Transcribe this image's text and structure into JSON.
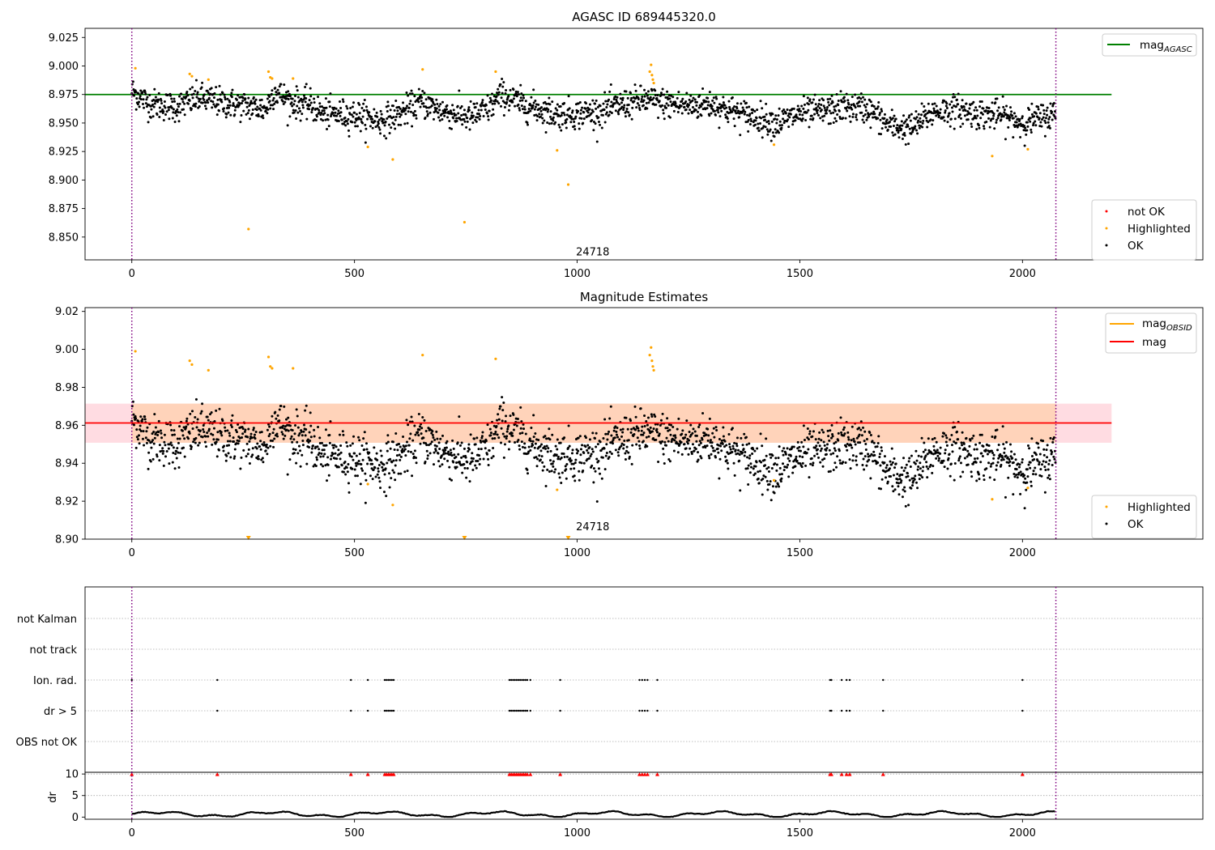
{
  "chart_data": [
    {
      "type": "scatter",
      "title": "AGASC ID 689445320.0",
      "xlim": [
        -105,
        2405
      ],
      "ylim": [
        8.83,
        9.033
      ],
      "xticks": [
        0,
        500,
        1000,
        1500,
        2000
      ],
      "yticks": [
        8.85,
        8.875,
        8.9,
        8.925,
        8.95,
        8.975,
        9.0,
        9.025
      ],
      "ytick_labels": [
        "8.850",
        "8.875",
        "8.900",
        "8.925",
        "8.950",
        "8.975",
        "9.000",
        "9.025"
      ],
      "xtick_labels": [
        "0",
        "500",
        "1000",
        "1500",
        "2000"
      ],
      "grid": false,
      "vlines": [
        0,
        2075
      ],
      "hline": {
        "y": 8.975,
        "x_range": [
          -105,
          2200
        ],
        "color": "#008000",
        "label": "mag",
        "label_sub": "AGASC"
      },
      "annotations": [
        {
          "text": "24718",
          "x": 1035,
          "y": 8.834
        }
      ],
      "legend_markers": [
        {
          "label": "not OK",
          "color": "#ff0000"
        },
        {
          "label": "Highlighted",
          "color": "#ffa500"
        },
        {
          "label": "OK",
          "color": "#000000"
        }
      ],
      "series": [
        {
          "name": "OK",
          "color": "#000000",
          "kind": "ok_cloud",
          "y_offset": 0
        },
        {
          "name": "Highlighted",
          "color": "#ffa500",
          "values": [
            [
              8,
              8.998
            ],
            [
              130,
              8.993
            ],
            [
              135,
              8.991
            ],
            [
              172,
              8.988
            ],
            [
              262,
              8.857
            ],
            [
              307,
              8.995
            ],
            [
              311,
              8.99
            ],
            [
              315,
              8.989
            ],
            [
              362,
              8.989
            ],
            [
              530,
              8.929
            ],
            [
              586,
              8.918
            ],
            [
              653,
              8.997
            ],
            [
              747,
              8.863
            ],
            [
              817,
              8.995
            ],
            [
              955,
              8.926
            ],
            [
              980,
              8.896
            ],
            [
              1163,
              8.995
            ],
            [
              1166,
              9.001
            ],
            [
              1168,
              8.992
            ],
            [
              1170,
              8.988
            ],
            [
              1172,
              8.985
            ],
            [
              1442,
              8.931
            ],
            [
              1932,
              8.921
            ],
            [
              2012,
              8.927
            ]
          ]
        }
      ]
    },
    {
      "type": "scatter",
      "title": "Magnitude Estimates",
      "xlim": [
        -105,
        2405
      ],
      "ylim": [
        8.9,
        9.022
      ],
      "xticks": [
        0,
        500,
        1000,
        1500,
        2000
      ],
      "yticks": [
        8.9,
        8.92,
        8.94,
        8.96,
        8.98,
        9.0,
        9.02
      ],
      "ytick_labels": [
        "8.90",
        "8.92",
        "8.94",
        "8.96",
        "8.98",
        "9.00",
        "9.02"
      ],
      "xtick_labels": [
        "0",
        "500",
        "1000",
        "1500",
        "2000"
      ],
      "grid": false,
      "vlines": [
        0,
        2075
      ],
      "band": {
        "y1": 8.9508,
        "y2": 8.9714,
        "x_range": [
          -105,
          2200
        ],
        "color": "#ffc0cb"
      },
      "band_inner": {
        "y1": 8.9508,
        "y2": 8.9714,
        "x_range": [
          0,
          2075
        ],
        "color": "#ffd1b0"
      },
      "hline": {
        "y": 8.9612,
        "x_range": [
          -105,
          2200
        ],
        "color": "#ff0000",
        "label": "mag"
      },
      "obsid_line": {
        "color": "#ffa500",
        "label": "mag",
        "label_sub": "OBSID"
      },
      "annotations": [
        {
          "text": "24718",
          "x": 1035,
          "y": 8.903
        }
      ],
      "offscale_markers": [
        [
          262,
          8.9
        ],
        [
          747,
          8.9
        ],
        [
          980,
          8.9
        ]
      ],
      "legend_markers": [
        {
          "label": "Highlighted",
          "color": "#ffa500"
        },
        {
          "label": "OK",
          "color": "#000000"
        }
      ],
      "series": [
        {
          "name": "OK",
          "color": "#000000",
          "kind": "ok_cloud",
          "y_offset": -0.0138
        },
        {
          "name": "Highlighted",
          "color": "#ffa500",
          "values": [
            [
              8,
              8.999
            ],
            [
              130,
              8.994
            ],
            [
              135,
              8.992
            ],
            [
              172,
              8.989
            ],
            [
              307,
              8.996
            ],
            [
              311,
              8.991
            ],
            [
              315,
              8.99
            ],
            [
              362,
              8.99
            ],
            [
              530,
              8.929
            ],
            [
              586,
              8.918
            ],
            [
              653,
              8.997
            ],
            [
              817,
              8.995
            ],
            [
              955,
              8.926
            ],
            [
              1163,
              8.997
            ],
            [
              1166,
              9.001
            ],
            [
              1168,
              8.994
            ],
            [
              1170,
              8.991
            ],
            [
              1172,
              8.989
            ],
            [
              1442,
              8.931
            ],
            [
              1932,
              8.921
            ],
            [
              2012,
              8.927
            ]
          ]
        }
      ]
    },
    {
      "type": "scatter",
      "title": "",
      "xlim": [
        -105,
        2405
      ],
      "categories": [
        "OBS not OK",
        "dr > 5",
        "Ion. rad.",
        "not track",
        "not Kalman"
      ],
      "grid": true,
      "vlines": [
        0,
        2075
      ],
      "flags": {
        "Ion. rad.": [
          0,
          192,
          492,
          530,
          568,
          572,
          576,
          580,
          584,
          588,
          848,
          852,
          856,
          860,
          864,
          868,
          872,
          876,
          880,
          884,
          888,
          895,
          962,
          1140,
          1146,
          1152,
          1158,
          1180,
          1568,
          1571,
          1594,
          1605,
          1612,
          1687,
          2000
        ],
        "dr > 5": [
          0,
          192,
          492,
          530,
          568,
          572,
          576,
          580,
          584,
          588,
          848,
          852,
          856,
          860,
          864,
          868,
          872,
          876,
          880,
          884,
          888,
          895,
          962,
          1140,
          1146,
          1152,
          1158,
          1180,
          1568,
          1571,
          1594,
          1605,
          1612,
          1687,
          2000
        ]
      }
    },
    {
      "type": "line",
      "title": "",
      "ylabel": "dr",
      "xlim": [
        -105,
        2405
      ],
      "ylim": [
        -0.5,
        10.4
      ],
      "yticks": [
        0,
        5,
        10
      ],
      "ytick_labels": [
        "0",
        "5",
        "10"
      ],
      "xticks": [
        0,
        500,
        1000,
        1500,
        2000
      ],
      "xtick_labels": [
        "0",
        "500",
        "1000",
        "1500",
        "2000"
      ],
      "vlines": [
        0,
        2075
      ],
      "hline_dotted": [
        5,
        10
      ],
      "red_markers_y": 10,
      "red_markers_x": [
        0,
        192,
        492,
        530,
        568,
        572,
        576,
        580,
        584,
        588,
        848,
        852,
        856,
        860,
        864,
        868,
        872,
        876,
        880,
        884,
        888,
        895,
        962,
        1140,
        1146,
        1152,
        1158,
        1180,
        1568,
        1571,
        1594,
        1605,
        1612,
        1687,
        2000
      ],
      "series": [
        {
          "name": "dr",
          "color": "#000000",
          "kind": "dr_trace"
        }
      ]
    }
  ]
}
